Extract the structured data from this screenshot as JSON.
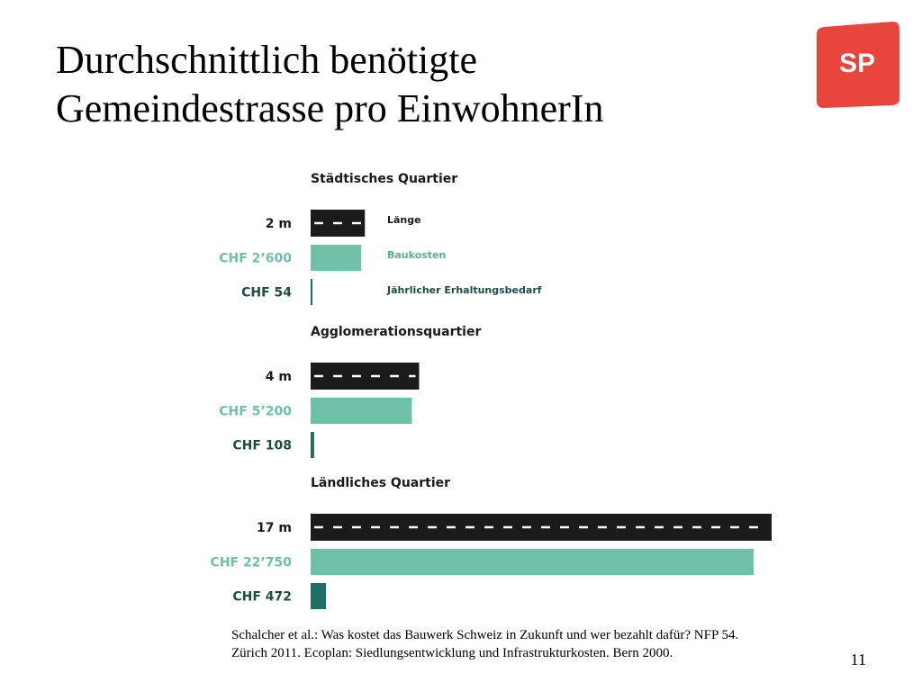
{
  "slide": {
    "title_lines": [
      "Durchschnittlich benötigte",
      "Gemeindestrasse pro EinwohnerIn"
    ],
    "logo_text": "SP",
    "source_lines": [
      "Schalcher et al.: Was kostet das Bauwerk Schweiz in Zukunft und wer bezahlt dafür? NFP 54.",
      "Zürich 2011. Ecoplan: Siedlungsentwicklung und Infrastrukturkosten. Bern 2000."
    ],
    "page_number": "11"
  },
  "colors": {
    "road": "#1b1b1b",
    "road_dash": "#ffffff",
    "baukosten": "#6ec0a8",
    "erhaltung": "#1f6e62",
    "value_length": "#1a1a1a",
    "value_baukosten": "#6ec0a8",
    "value_erhaltung": "#1f4d46",
    "legend_baukosten": "#4fb39a",
    "legend_erhaltung": "#1f4d46",
    "logo": "#e8463c"
  },
  "chart_data": {
    "type": "bar",
    "groups": [
      {
        "title": "Städtisches Quartier",
        "rows": [
          {
            "kind": "length",
            "label": "2 m",
            "value": 2
          },
          {
            "kind": "baukosten",
            "label": "CHF 2’600",
            "value": 2600
          },
          {
            "kind": "erhaltung",
            "label": "CHF 54",
            "value": 54
          }
        ]
      },
      {
        "title": "Agglomerationsquartier",
        "rows": [
          {
            "kind": "length",
            "label": "4 m",
            "value": 4
          },
          {
            "kind": "baukosten",
            "label": "CHF 5’200",
            "value": 5200
          },
          {
            "kind": "erhaltung",
            "label": "CHF 108",
            "value": 108
          }
        ]
      },
      {
        "title": "Ländliches Quartier",
        "rows": [
          {
            "kind": "length",
            "label": "17 m",
            "value": 17
          },
          {
            "kind": "baukosten",
            "label": "CHF 22’750",
            "value": 22750
          },
          {
            "kind": "erhaltung",
            "label": "CHF 472",
            "value": 472
          }
        ]
      }
    ],
    "legend": [
      {
        "kind": "length",
        "label": "Länge"
      },
      {
        "kind": "baukosten",
        "label": "Baukosten"
      },
      {
        "kind": "erhaltung",
        "label": "Jährlicher Erhaltungsbedarf"
      }
    ]
  }
}
